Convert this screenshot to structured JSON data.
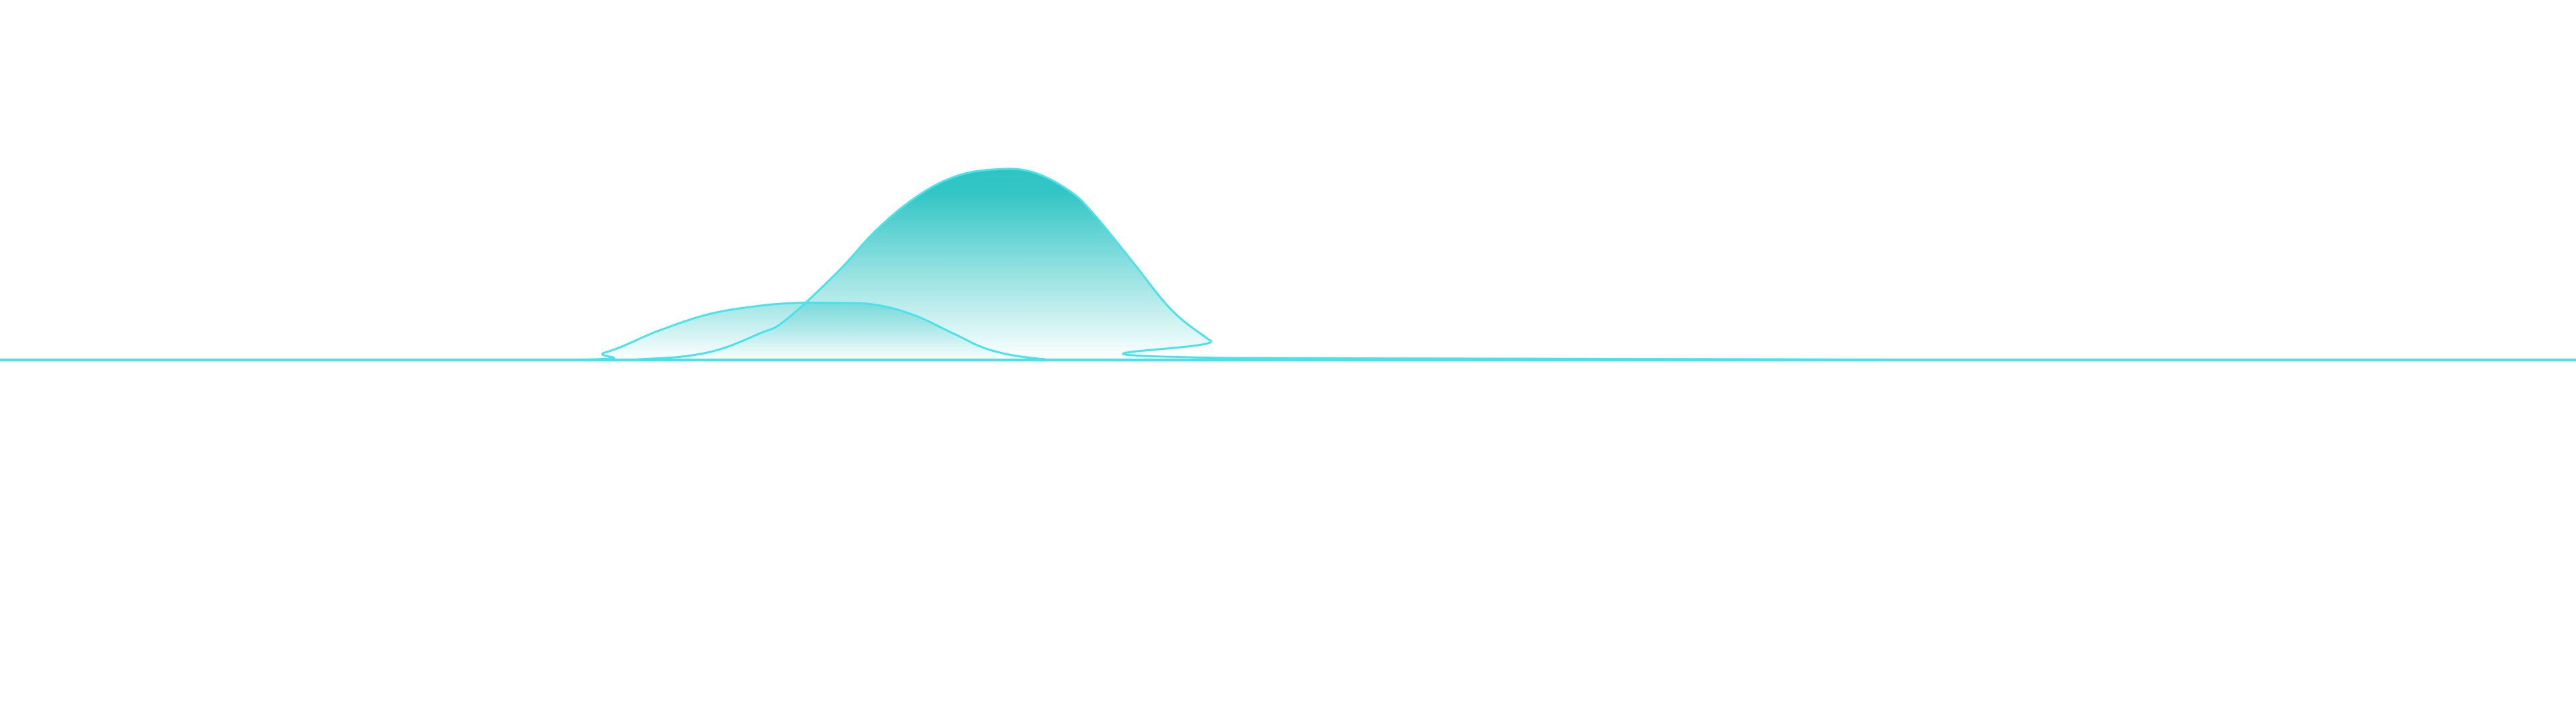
{
  "chart_data": {
    "type": "area",
    "title": "",
    "xlabel": "",
    "ylabel": "",
    "grid": false,
    "legend": "none",
    "xlim": [
      0,
      100
    ],
    "ylim": [
      0,
      100
    ],
    "colors": {
      "line": "#46e3ea",
      "fill": "#2ec4c4",
      "background": "#ffffff"
    },
    "series": [
      {
        "x": [
          0,
          21.5,
          25,
          27.5,
          29.5,
          30.5,
          32.5,
          34,
          35.5,
          37,
          38.5,
          40,
          41.5,
          42.5,
          44,
          45.5,
          47,
          48,
          100
        ],
        "y": [
          0,
          0,
          0.5,
          4,
          14,
          21,
          46,
          68,
          85,
          96,
          100,
          99,
          89,
          76,
          51,
          26,
          10,
          1,
          0
        ]
      },
      {
        "x": [
          0,
          21.5,
          23.5,
          25.5,
          27.5,
          29.5,
          31,
          32.5,
          34,
          35.5,
          37,
          38.5,
          40.5,
          43,
          100
        ],
        "y": [
          0,
          0,
          4,
          15,
          24,
          28.5,
          30,
          30,
          29,
          23.5,
          14,
          5,
          0.5,
          0,
          0
        ]
      }
    ]
  }
}
